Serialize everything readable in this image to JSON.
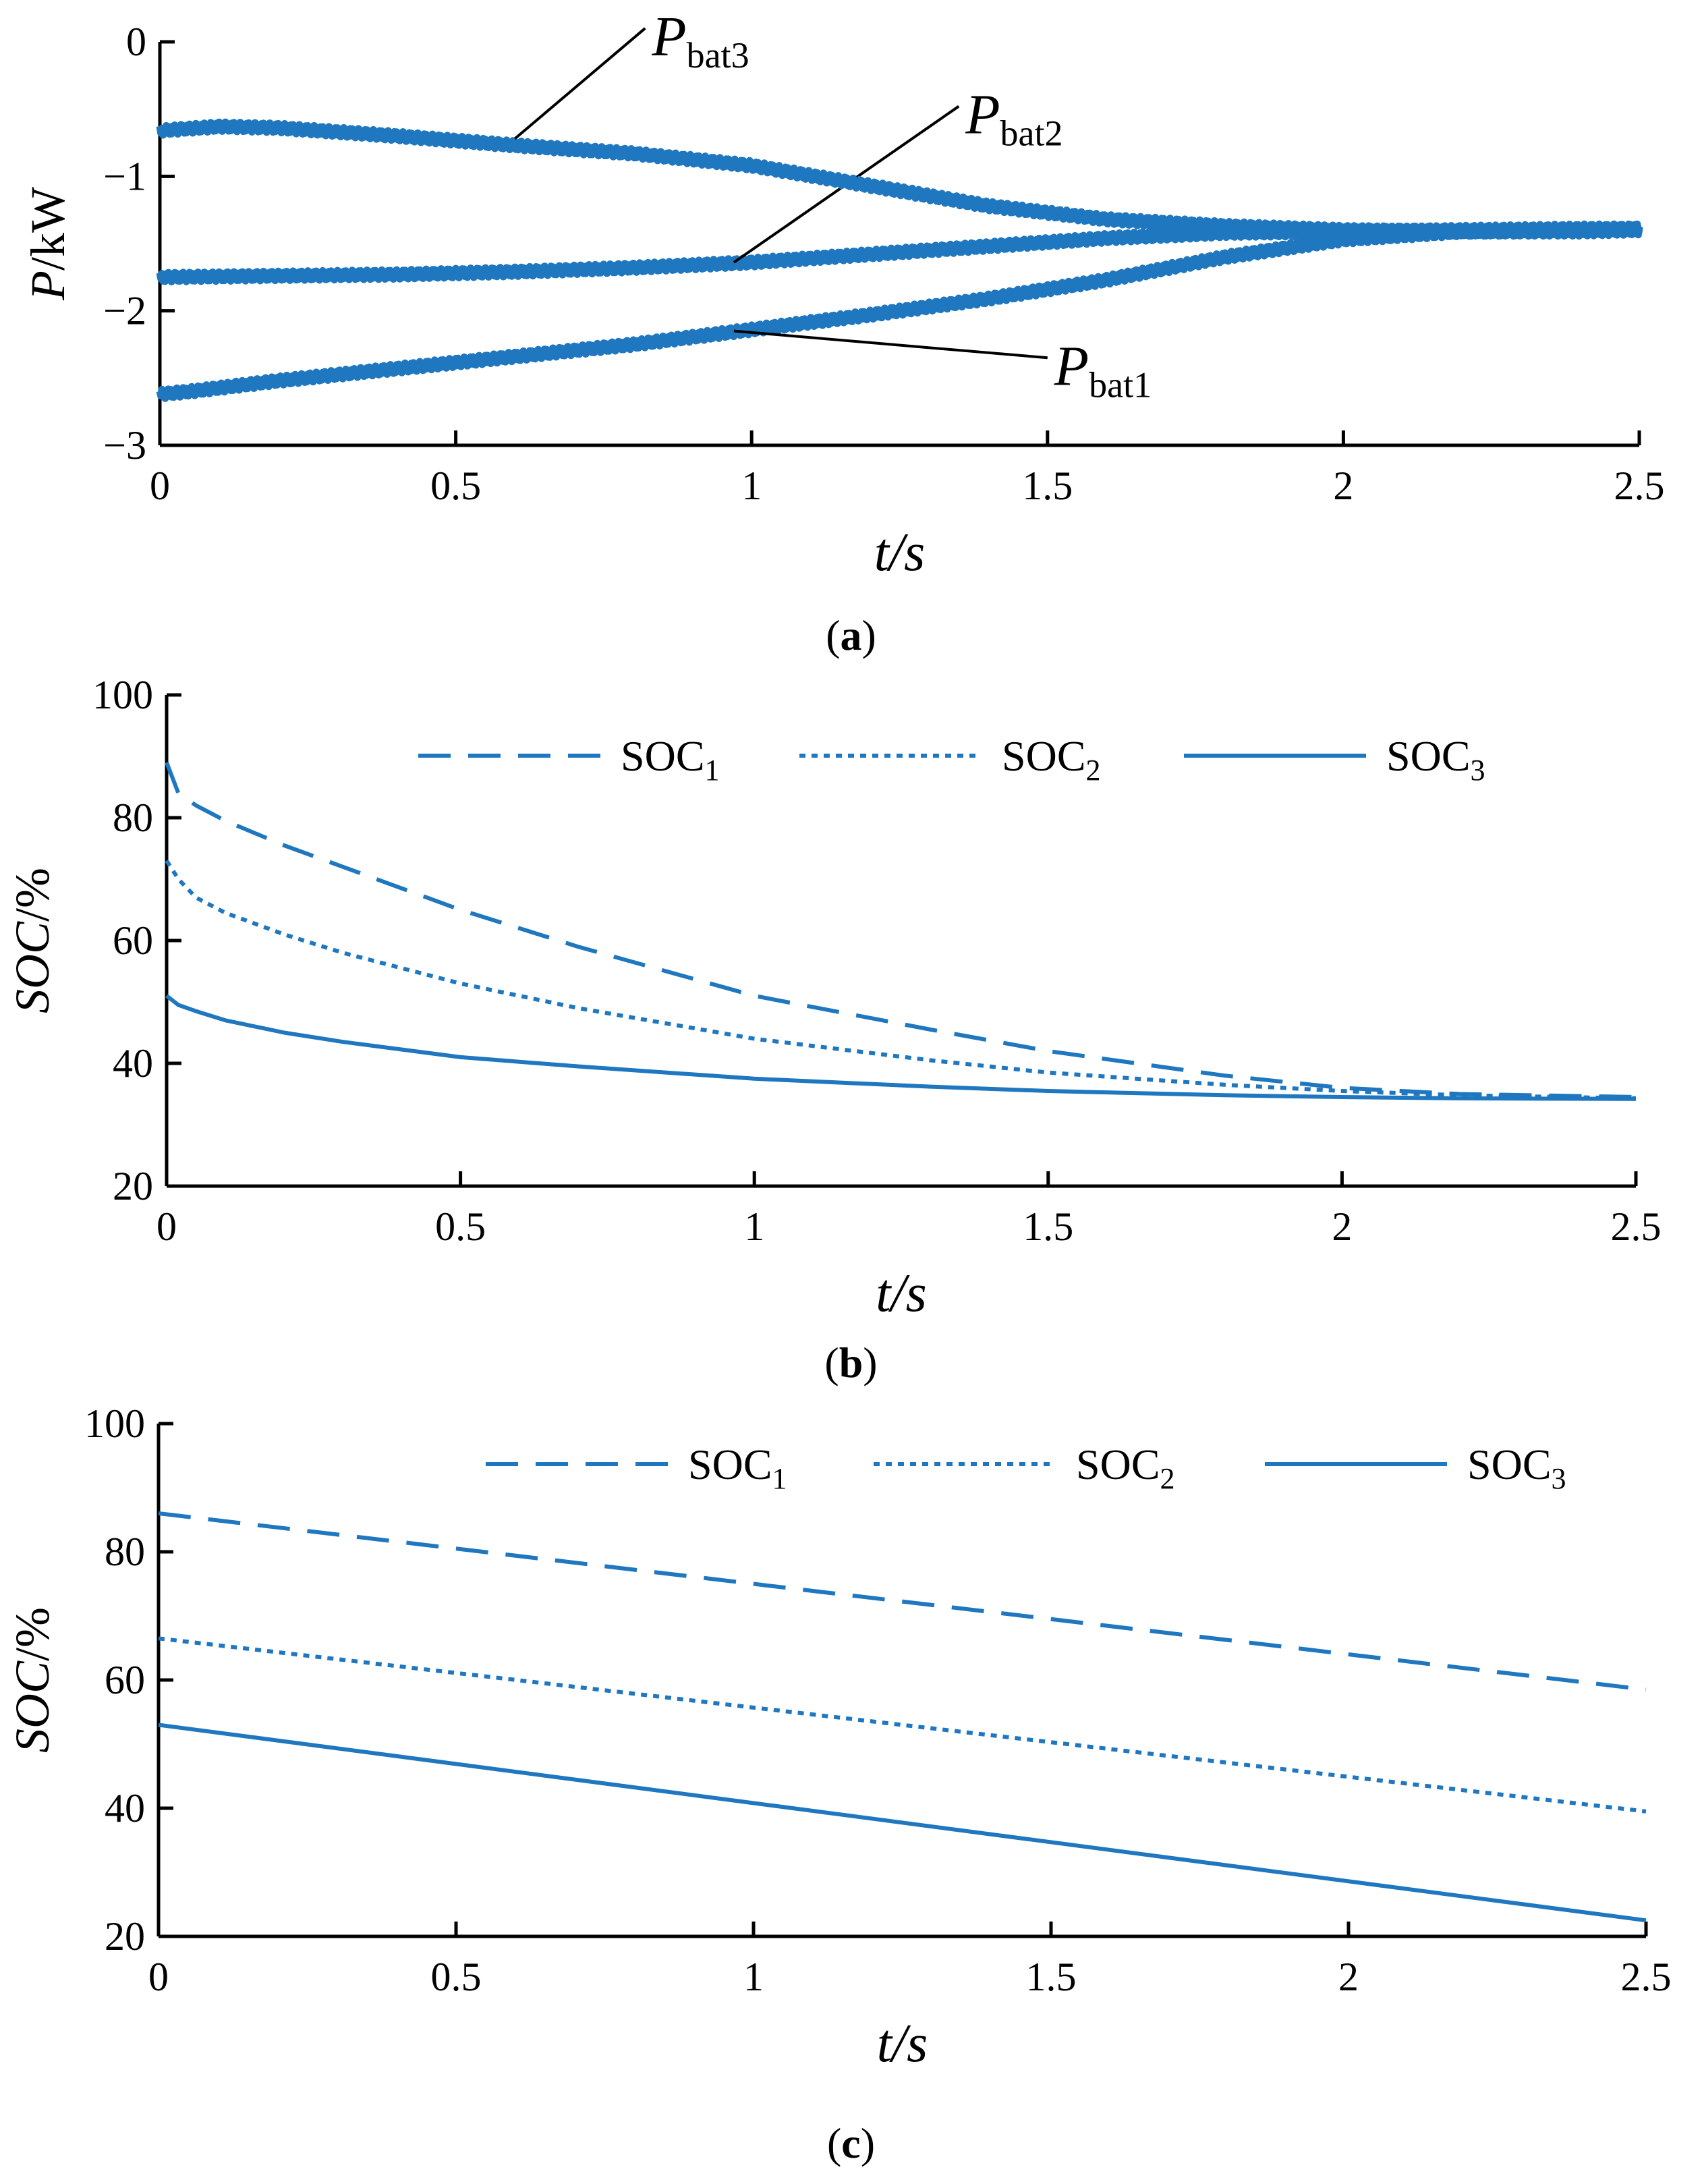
{
  "colors": {
    "line": "#1f77c0",
    "axis": "#000000",
    "text": "#000000"
  },
  "captions": {
    "a": "a",
    "b": "b",
    "c": "c"
  },
  "chart_data": [
    {
      "id": "a",
      "type": "line",
      "xlabel": "t/s",
      "ylabel_italic": "P",
      "ylabel_rest": "/kW",
      "xlim": [
        0,
        2.5
      ],
      "ylim": [
        -3,
        0
      ],
      "xticks": [
        0,
        0.5,
        1,
        1.5,
        2,
        2.5
      ],
      "xtick_labels": [
        "0",
        "0.5",
        "1",
        "1.5",
        "2",
        "2.5"
      ],
      "yticks": [
        0,
        -1,
        -2,
        -3
      ],
      "ytick_labels": [
        "0",
        "−1",
        "−2",
        "−3"
      ],
      "noisy": true,
      "series": [
        {
          "name": "Pbat1",
          "label_main": "P",
          "label_sub": "bat1",
          "style": "solid",
          "x": [
            0,
            0.05,
            0.2,
            0.4,
            0.6,
            0.8,
            1.0,
            1.2,
            1.4,
            1.6,
            1.8,
            2.0,
            2.2,
            2.4,
            2.5
          ],
          "y": [
            -2.62,
            -2.6,
            -2.52,
            -2.43,
            -2.34,
            -2.25,
            -2.14,
            -2.03,
            -1.91,
            -1.77,
            -1.6,
            -1.47,
            -1.41,
            -1.4,
            -1.39
          ],
          "annotation": {
            "point_x": 0.97,
            "point_y": -2.15,
            "label_x": 1.5,
            "label_y": -2.55
          }
        },
        {
          "name": "Pbat2",
          "label_main": "P",
          "label_sub": "bat2",
          "style": "solid",
          "x": [
            0,
            0.2,
            0.4,
            0.6,
            0.8,
            1.0,
            1.2,
            1.4,
            1.6,
            1.8,
            2.0,
            2.2,
            2.4,
            2.5
          ],
          "y": [
            -1.75,
            -1.74,
            -1.73,
            -1.71,
            -1.68,
            -1.64,
            -1.58,
            -1.52,
            -1.46,
            -1.42,
            -1.41,
            -1.4,
            -1.39,
            -1.39
          ],
          "annotation": {
            "point_x": 0.97,
            "point_y": -1.64,
            "label_x": 1.35,
            "label_y": -0.68
          }
        },
        {
          "name": "Pbat3",
          "label_main": "P",
          "label_sub": "bat3",
          "style": "solid",
          "x": [
            0,
            0.1,
            0.2,
            0.4,
            0.6,
            0.8,
            1.0,
            1.2,
            1.4,
            1.6,
            1.8,
            2.0,
            2.2,
            2.4,
            2.5
          ],
          "y": [
            -0.66,
            -0.63,
            -0.64,
            -0.7,
            -0.77,
            -0.83,
            -0.92,
            -1.07,
            -1.22,
            -1.32,
            -1.37,
            -1.4,
            -1.41,
            -1.41,
            -1.4
          ],
          "annotation": {
            "point_x": 0.6,
            "point_y": -0.72,
            "label_x": 0.82,
            "label_y": -0.1
          }
        }
      ]
    },
    {
      "id": "b",
      "type": "line",
      "xlabel": "t/s",
      "ylabel_italic": "SOC",
      "ylabel_rest": "/%",
      "xlim": [
        0,
        2.5
      ],
      "ylim": [
        20,
        100
      ],
      "xticks": [
        0,
        0.5,
        1,
        1.5,
        2,
        2.5
      ],
      "xtick_labels": [
        "0",
        "0.5",
        "1",
        "1.5",
        "2",
        "2.5"
      ],
      "yticks": [
        20,
        40,
        60,
        80,
        100
      ],
      "ytick_labels": [
        "20",
        "40",
        "60",
        "80",
        "100"
      ],
      "legend_position": "top",
      "series": [
        {
          "name": "SOC1",
          "label_main": "SOC",
          "label_sub": "1",
          "style": "dashed",
          "x": [
            0,
            0.02,
            0.05,
            0.1,
            0.2,
            0.3,
            0.5,
            0.7,
            1.0,
            1.3,
            1.5,
            1.8,
            2.0,
            2.2,
            2.5
          ],
          "y": [
            89,
            84,
            82,
            79.5,
            75.5,
            72,
            65,
            59,
            51,
            45.5,
            42,
            38,
            36,
            35,
            34.5
          ]
        },
        {
          "name": "SOC2",
          "label_main": "SOC",
          "label_sub": "2",
          "style": "dotted",
          "x": [
            0,
            0.02,
            0.05,
            0.1,
            0.2,
            0.3,
            0.5,
            0.7,
            1.0,
            1.3,
            1.5,
            1.8,
            2.0,
            2.2,
            2.5
          ],
          "y": [
            73,
            70,
            67,
            64.5,
            61,
            58,
            53,
            49,
            44,
            40.5,
            38.5,
            36.5,
            35.5,
            34.8,
            34.3
          ]
        },
        {
          "name": "SOC3",
          "label_main": "SOC",
          "label_sub": "3",
          "style": "solid",
          "x": [
            0,
            0.02,
            0.05,
            0.1,
            0.2,
            0.3,
            0.5,
            0.7,
            1.0,
            1.3,
            1.5,
            1.8,
            2.0,
            2.2,
            2.5
          ],
          "y": [
            51,
            49.5,
            48.5,
            47,
            45,
            43.5,
            41,
            39.5,
            37.5,
            36.2,
            35.5,
            34.8,
            34.5,
            34.3,
            34.2
          ]
        }
      ]
    },
    {
      "id": "c",
      "type": "line",
      "xlabel": "t/s",
      "ylabel_italic": "SOC",
      "ylabel_rest": "/%",
      "xlim": [
        0,
        2.5
      ],
      "ylim": [
        20,
        100
      ],
      "xticks": [
        0,
        0.5,
        1,
        1.5,
        2,
        2.5
      ],
      "xtick_labels": [
        "0",
        "0.5",
        "1",
        "1.5",
        "2",
        "2.5"
      ],
      "yticks": [
        20,
        40,
        60,
        80,
        100
      ],
      "ytick_labels": [
        "20",
        "40",
        "60",
        "80",
        "100"
      ],
      "legend_position": "top",
      "series": [
        {
          "name": "SOC1",
          "label_main": "SOC",
          "label_sub": "1",
          "style": "dashed",
          "x": [
            0,
            2.5
          ],
          "y": [
            86,
            58.5
          ]
        },
        {
          "name": "SOC2",
          "label_main": "SOC",
          "label_sub": "2",
          "style": "dotted",
          "x": [
            0,
            2.5
          ],
          "y": [
            66.5,
            39.5
          ]
        },
        {
          "name": "SOC3",
          "label_main": "SOC",
          "label_sub": "3",
          "style": "solid",
          "x": [
            0,
            2.5
          ],
          "y": [
            53,
            22.5
          ]
        }
      ]
    }
  ]
}
